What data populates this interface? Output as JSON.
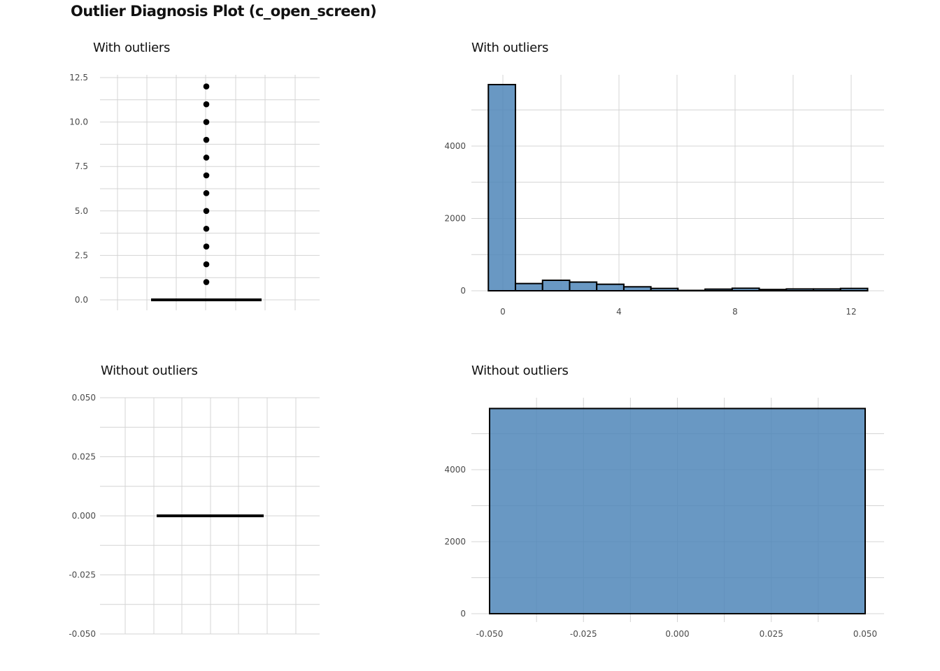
{
  "title": "Outlier Diagnosis Plot (c_open_screen)",
  "colors": {
    "fill": "#4f86b8",
    "stroke": "#000000",
    "grid": "#d4d4d4",
    "text": "#4a4a4a"
  },
  "chart_data": [
    {
      "type": "box",
      "title": "With outliers",
      "ylim": [
        0,
        12.5
      ],
      "yticks": [
        "0.0",
        "2.5",
        "5.0",
        "7.5",
        "10.0",
        "12.5"
      ],
      "ytick_values": [
        0,
        2.5,
        5,
        7.5,
        10,
        12.5
      ],
      "box": {
        "q1": 0,
        "median": 0,
        "q3": 0
      },
      "outliers": [
        1,
        2,
        3,
        4,
        5,
        6,
        7,
        8,
        9,
        10,
        11,
        12
      ]
    },
    {
      "type": "histogram",
      "title": "With outliers",
      "xlim": [
        -0.5,
        12.5
      ],
      "ylim": [
        0,
        6000
      ],
      "xticks": [
        "0",
        "4",
        "8",
        "12"
      ],
      "xtick_values": [
        0,
        4,
        8,
        12
      ],
      "yticks": [
        "0",
        "2000",
        "4000"
      ],
      "ytick_values": [
        0,
        2000,
        4000
      ],
      "bins": [
        {
          "x0": -0.5,
          "x1": 0.433,
          "count": 5700
        },
        {
          "x0": 0.433,
          "x1": 1.367,
          "count": 200
        },
        {
          "x0": 1.367,
          "x1": 2.3,
          "count": 290
        },
        {
          "x0": 2.3,
          "x1": 3.233,
          "count": 240
        },
        {
          "x0": 3.233,
          "x1": 4.167,
          "count": 180
        },
        {
          "x0": 4.167,
          "x1": 5.1,
          "count": 110
        },
        {
          "x0": 5.1,
          "x1": 6.033,
          "count": 65
        },
        {
          "x0": 6.033,
          "x1": 6.967,
          "count": 10
        },
        {
          "x0": 6.967,
          "x1": 7.9,
          "count": 45
        },
        {
          "x0": 7.9,
          "x1": 8.833,
          "count": 70
        },
        {
          "x0": 8.833,
          "x1": 9.767,
          "count": 35
        },
        {
          "x0": 9.767,
          "x1": 10.7,
          "count": 50
        },
        {
          "x0": 10.7,
          "x1": 11.633,
          "count": 50
        },
        {
          "x0": 11.633,
          "x1": 12.567,
          "count": 65
        }
      ]
    },
    {
      "type": "box",
      "title": "Without outliers",
      "ylim": [
        -0.05,
        0.05
      ],
      "yticks": [
        "-0.050",
        "-0.025",
        "0.000",
        "0.025",
        "0.050"
      ],
      "ytick_values": [
        -0.05,
        -0.025,
        0,
        0.025,
        0.05
      ],
      "box": {
        "q1": 0,
        "median": 0,
        "q3": 0
      },
      "outliers": []
    },
    {
      "type": "histogram",
      "title": "Without outliers",
      "xlim": [
        -0.05,
        0.05
      ],
      "ylim": [
        0,
        6000
      ],
      "xticks": [
        "-0.050",
        "-0.025",
        "0.000",
        "0.025",
        "0.050"
      ],
      "xtick_values": [
        -0.05,
        -0.025,
        0,
        0.025,
        0.05
      ],
      "yticks": [
        "0",
        "2000",
        "4000"
      ],
      "ytick_values": [
        0,
        2000,
        4000
      ],
      "bins": [
        {
          "x0": -0.05,
          "x1": 0.05,
          "count": 5700
        }
      ]
    }
  ]
}
